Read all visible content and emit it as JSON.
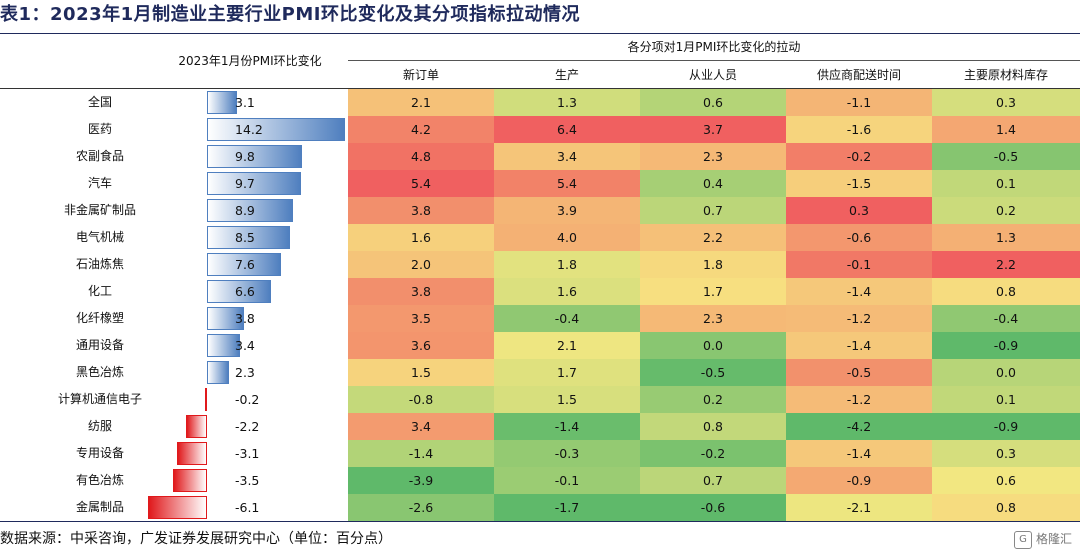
{
  "page": {
    "title": "表1：2023年1月制造业主要行业PMI环比变化及其分项指标拉动情况",
    "footer": "数据来源：中采咨询，广发证券发展研究中心（单位：百分点）",
    "watermark": "格隆汇",
    "watermark_badge": "G"
  },
  "headers": {
    "pmi_column": "2023年1月份PMI环比变化",
    "contribution_group": "各分项对1月PMI环比变化的拉动",
    "subitems": [
      "新订单",
      "生产",
      "从业人员",
      "供应商配送时间",
      "主要原材料库存"
    ]
  },
  "colors": {
    "positive_bar": "#4f7fbf",
    "negative_bar": "#e0191c",
    "heat_high": "#f06060",
    "heat_mid": "#f7e982",
    "heat_low": "#5fb96a"
  },
  "chart_data": {
    "type": "table",
    "categories": [
      "全国",
      "医药",
      "农副食品",
      "汽车",
      "非金属矿制品",
      "电气机械",
      "石油炼焦",
      "化工",
      "化纤橡塑",
      "通用设备",
      "黑色冶炼",
      "计算机通信电子",
      "纺服",
      "专用设备",
      "有色冶炼",
      "金属制品"
    ],
    "pmi_change": {
      "name": "2023年1月份PMI环比变化",
      "type": "bar",
      "values": [
        3.1,
        14.2,
        9.8,
        9.7,
        8.9,
        8.5,
        7.6,
        6.6,
        3.8,
        3.4,
        2.3,
        -0.2,
        -2.2,
        -3.1,
        -3.5,
        -6.1
      ]
    },
    "heatmap": {
      "type": "heatmap",
      "columns": [
        "新订单",
        "生产",
        "从业人员",
        "供应商配送时间",
        "主要原材料库存"
      ],
      "rows": [
        [
          "2.1",
          "1.3",
          "0.6",
          "-1.1",
          "0.3"
        ],
        [
          "4.2",
          "6.4",
          "3.7",
          "-1.6",
          "1.4"
        ],
        [
          "4.8",
          "3.4",
          "2.3",
          "-0.2",
          "-0.5"
        ],
        [
          "5.4",
          "5.4",
          "0.4",
          "-1.5",
          "0.1"
        ],
        [
          "3.8",
          "3.9",
          "0.7",
          "0.3",
          "0.2"
        ],
        [
          "1.6",
          "4.0",
          "2.2",
          "-0.6",
          "1.3"
        ],
        [
          "2.0",
          "1.8",
          "1.8",
          "-0.1",
          "2.2"
        ],
        [
          "3.8",
          "1.6",
          "1.7",
          "-1.4",
          "0.8"
        ],
        [
          "3.5",
          "-0.4",
          "2.3",
          "-1.2",
          "-0.4"
        ],
        [
          "3.6",
          "2.1",
          "0.0",
          "-1.4",
          "-0.9"
        ],
        [
          "1.5",
          "1.7",
          "-0.5",
          "-0.5",
          "0.0"
        ],
        [
          "-0.8",
          "1.5",
          "0.2",
          "-1.2",
          "0.1"
        ],
        [
          "3.4",
          "-1.4",
          "0.8",
          "-4.2",
          "-0.9"
        ],
        [
          "-1.4",
          "-0.3",
          "-0.2",
          "-1.4",
          "0.3"
        ],
        [
          "-3.9",
          "-0.1",
          "0.7",
          "-0.9",
          "0.6"
        ],
        [
          "-2.6",
          "-1.7",
          "-0.6",
          "-2.1",
          "0.8"
        ]
      ]
    }
  }
}
